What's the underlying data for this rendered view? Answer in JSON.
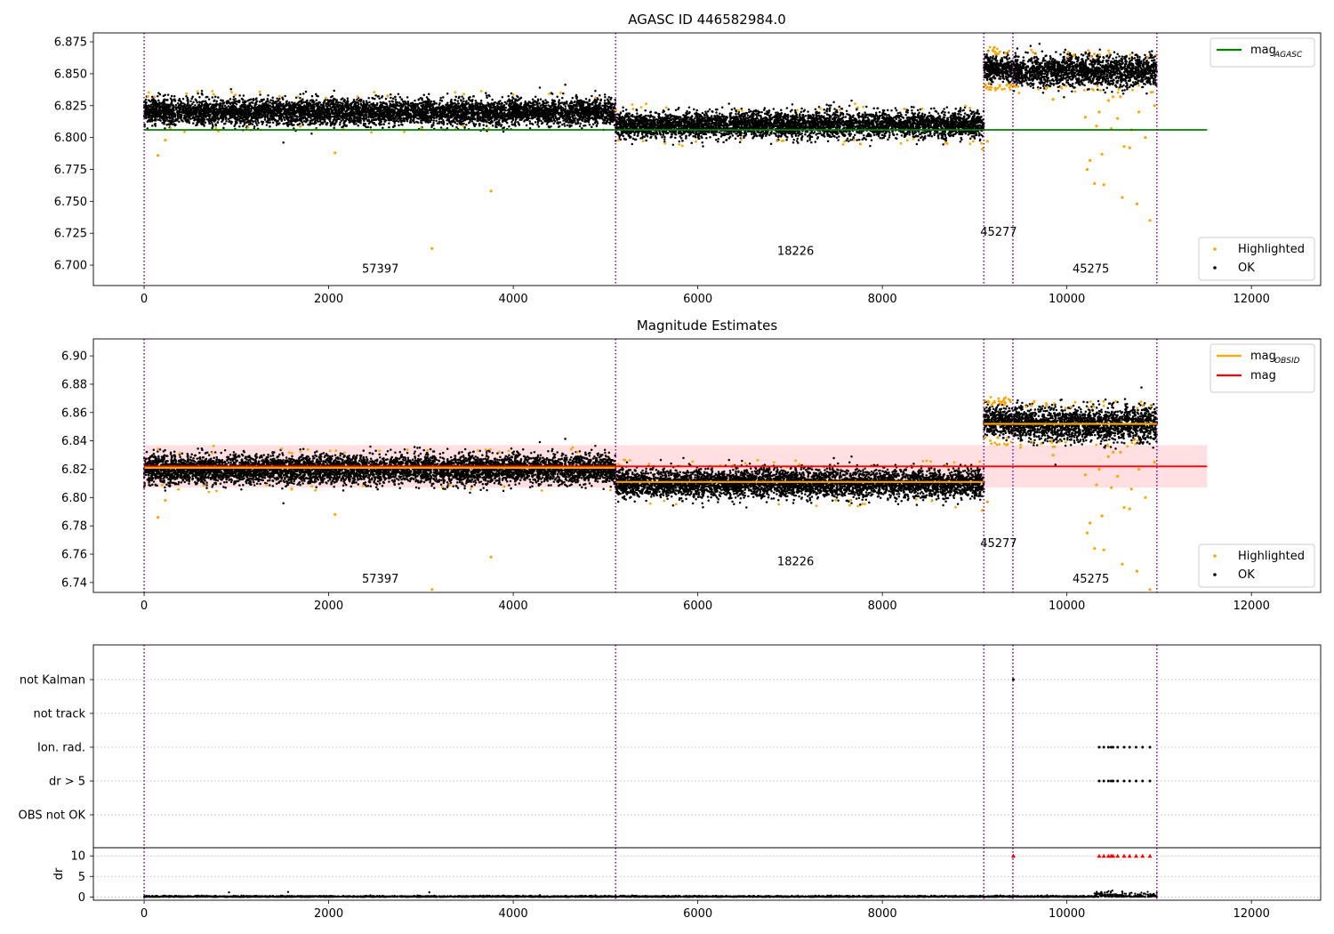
{
  "chart_data": [
    {
      "type": "scatter",
      "title": "AGASC ID 446582984.0",
      "xlim": [
        -550,
        12750
      ],
      "ylim": [
        6.684,
        6.882
      ],
      "x_ticks": [
        0,
        2000,
        4000,
        6000,
        8000,
        10000,
        12000
      ],
      "y_ticks": [
        6.7,
        6.725,
        6.75,
        6.775,
        6.8,
        6.825,
        6.85,
        6.875
      ],
      "y_tick_labels": [
        "6.700",
        "6.725",
        "6.750",
        "6.775",
        "6.800",
        "6.825",
        "6.850",
        "6.875"
      ],
      "obs_boundaries": [
        0,
        5110,
        9100,
        9415,
        10975
      ],
      "obs_segments": [
        {
          "x_start": 0,
          "x_end": 5110,
          "mean": 6.82,
          "spread": 0.005
        },
        {
          "x_start": 5110,
          "x_end": 9100,
          "mean": 6.81,
          "spread": 0.005
        },
        {
          "x_start": 9100,
          "x_end": 9415,
          "mean": 6.854,
          "spread": 0.005
        },
        {
          "x_start": 9415,
          "x_end": 10975,
          "mean": 6.852,
          "spread": 0.006
        }
      ],
      "reference_lines": [
        {
          "name": "mag",
          "subscript": "AGASC",
          "y": 6.806,
          "x_start": 0,
          "x_end": 11520,
          "color": "#008000"
        }
      ],
      "outliers": [
        [
          150,
          6.786
        ],
        [
          230,
          6.798
        ],
        [
          2070,
          6.788
        ],
        [
          3120,
          6.713
        ],
        [
          3760,
          6.758
        ],
        [
          9085,
          6.791
        ],
        [
          9140,
          6.797
        ],
        [
          10220,
          6.775
        ],
        [
          10250,
          6.782
        ],
        [
          10300,
          6.764
        ],
        [
          10400,
          6.763
        ],
        [
          10600,
          6.753
        ],
        [
          10760,
          6.748
        ],
        [
          10900,
          6.735
        ],
        [
          10320,
          6.809
        ],
        [
          10350,
          6.82
        ],
        [
          10450,
          6.829
        ],
        [
          10500,
          6.832
        ],
        [
          10550,
          6.815
        ],
        [
          10620,
          6.793
        ],
        [
          10700,
          6.806
        ],
        [
          10780,
          6.82
        ],
        [
          10850,
          6.8
        ],
        [
          10950,
          6.825
        ],
        [
          9850,
          6.83
        ],
        [
          10200,
          6.816
        ],
        [
          10380,
          6.787
        ],
        [
          10480,
          6.807
        ],
        [
          10580,
          6.832
        ],
        [
          10680,
          6.792
        ]
      ],
      "annotations": [
        {
          "text": "57397",
          "x": 2560,
          "y": 6.694
        },
        {
          "text": "18226",
          "x": 7060,
          "y": 6.708
        },
        {
          "text": "45277",
          "x": 9260,
          "y": 6.723
        },
        {
          "text": "45275",
          "x": 10260,
          "y": 6.694
        }
      ],
      "legend_lines": [
        {
          "label": "mag",
          "subscript": "AGASC",
          "color": "#008000"
        }
      ],
      "legend_markers": [
        {
          "label": "Highlighted",
          "color": "#ffa500"
        },
        {
          "label": "OK",
          "color": "#000000"
        }
      ],
      "colors": {
        "ok": "#000000",
        "highlighted": "#ffa500",
        "obs_line": "#800080"
      }
    },
    {
      "type": "scatter",
      "title": "Magnitude Estimates",
      "xlim": [
        -550,
        12750
      ],
      "ylim": [
        6.733,
        6.912
      ],
      "x_ticks": [
        0,
        2000,
        4000,
        6000,
        8000,
        10000,
        12000
      ],
      "y_ticks": [
        6.74,
        6.76,
        6.78,
        6.8,
        6.82,
        6.84,
        6.86,
        6.88,
        6.9
      ],
      "y_tick_labels": [
        "6.74",
        "6.76",
        "6.78",
        "6.80",
        "6.82",
        "6.84",
        "6.86",
        "6.88",
        "6.90"
      ],
      "obs_boundaries": [
        0,
        5110,
        9100,
        9415,
        10975
      ],
      "obs_segments": [
        {
          "x_start": 0,
          "x_end": 5110,
          "mean": 6.82,
          "spread": 0.005
        },
        {
          "x_start": 5110,
          "x_end": 9100,
          "mean": 6.81,
          "spread": 0.005
        },
        {
          "x_start": 9100,
          "x_end": 9415,
          "mean": 6.854,
          "spread": 0.005
        },
        {
          "x_start": 9415,
          "x_end": 10975,
          "mean": 6.852,
          "spread": 0.006
        }
      ],
      "reference_lines": [
        {
          "name": "mag",
          "y": 6.822,
          "x_start": 0,
          "x_end": 11520,
          "color": "#ff0000"
        }
      ],
      "band": {
        "y_low": 6.807,
        "y_high": 6.837,
        "x_start": 0,
        "x_end": 11520,
        "color": "#ffdfe2"
      },
      "segment_means": [
        {
          "x_start": 0,
          "x_end": 5110,
          "y": 6.821
        },
        {
          "x_start": 5110,
          "x_end": 9100,
          "y": 6.811
        },
        {
          "x_start": 9100,
          "x_end": 10975,
          "y": 6.852
        }
      ],
      "outliers": [
        [
          150,
          6.786
        ],
        [
          230,
          6.798
        ],
        [
          2070,
          6.788
        ],
        [
          3120,
          6.735
        ],
        [
          3760,
          6.758
        ],
        [
          9085,
          6.791
        ],
        [
          9140,
          6.797
        ],
        [
          10220,
          6.775
        ],
        [
          10250,
          6.782
        ],
        [
          10300,
          6.764
        ],
        [
          10400,
          6.763
        ],
        [
          10600,
          6.753
        ],
        [
          10760,
          6.748
        ],
        [
          10900,
          6.735
        ],
        [
          10320,
          6.809
        ],
        [
          10350,
          6.82
        ],
        [
          10450,
          6.829
        ],
        [
          10500,
          6.832
        ],
        [
          10550,
          6.815
        ],
        [
          10620,
          6.793
        ],
        [
          10700,
          6.806
        ],
        [
          10780,
          6.82
        ],
        [
          10850,
          6.8
        ],
        [
          10950,
          6.825
        ],
        [
          9850,
          6.83
        ],
        [
          10200,
          6.816
        ],
        [
          10380,
          6.787
        ],
        [
          10480,
          6.807
        ],
        [
          10580,
          6.832
        ],
        [
          10680,
          6.792
        ]
      ],
      "annotations": [
        {
          "text": "57397",
          "x": 2560,
          "y": 6.74
        },
        {
          "text": "18226",
          "x": 7060,
          "y": 6.752
        },
        {
          "text": "45277",
          "x": 9260,
          "y": 6.765
        },
        {
          "text": "45275",
          "x": 10260,
          "y": 6.74
        }
      ],
      "legend_lines": [
        {
          "label": "mag",
          "subscript": "OBSID",
          "color": "#ffa500"
        },
        {
          "label": "mag",
          "subscript": "",
          "color": "#ff0000"
        }
      ],
      "legend_markers": [
        {
          "label": "Highlighted",
          "color": "#ffa500"
        },
        {
          "label": "OK",
          "color": "#000000"
        }
      ],
      "colors": {
        "ok": "#000000",
        "highlighted": "#ffa500",
        "obs_line": "#800080",
        "mean_line": "#ffa500"
      }
    },
    {
      "type": "scatter",
      "title": "",
      "xlim": [
        -550,
        12750
      ],
      "flag_categories": [
        "not Kalman",
        "not track",
        "Ion. rad.",
        "dr > 5",
        "OBS not OK"
      ],
      "obs_boundaries": [
        0,
        5110,
        9100,
        9415,
        10975
      ],
      "flag_points": {
        "not Kalman": [
          9420
        ],
        "not track": [],
        "Ion. rad.": [
          10350,
          10400,
          10450,
          10480,
          10500,
          10550,
          10620,
          10680,
          10750,
          10820,
          10900
        ],
        "dr > 5": [
          10350,
          10400,
          10450,
          10480,
          10500,
          10550,
          10620,
          10680,
          10750,
          10820,
          10900
        ],
        "OBS not OK": []
      },
      "dr_ylim": [
        -0.8,
        12
      ],
      "dr_ylabel": "dr",
      "dr_ticks": [
        0,
        5,
        10
      ],
      "dr_tick_labels": [
        "0",
        "5",
        "10"
      ],
      "dr_clipped_x": [
        9420,
        10350,
        10400,
        10450,
        10480,
        10500,
        10550,
        10620,
        10680,
        10750,
        10820,
        10900
      ],
      "dr_spikes": [
        [
          920,
          1.1
        ],
        [
          1560,
          1.2
        ],
        [
          3090,
          1.1
        ],
        [
          10600,
          1.3
        ],
        [
          10700,
          1.0
        ]
      ],
      "x_ticks": [
        0,
        2000,
        4000,
        6000,
        8000,
        10000,
        12000
      ],
      "colors": {
        "ok": "#000000",
        "clipped": "#ff0000",
        "obs_line": "#800080"
      }
    }
  ]
}
